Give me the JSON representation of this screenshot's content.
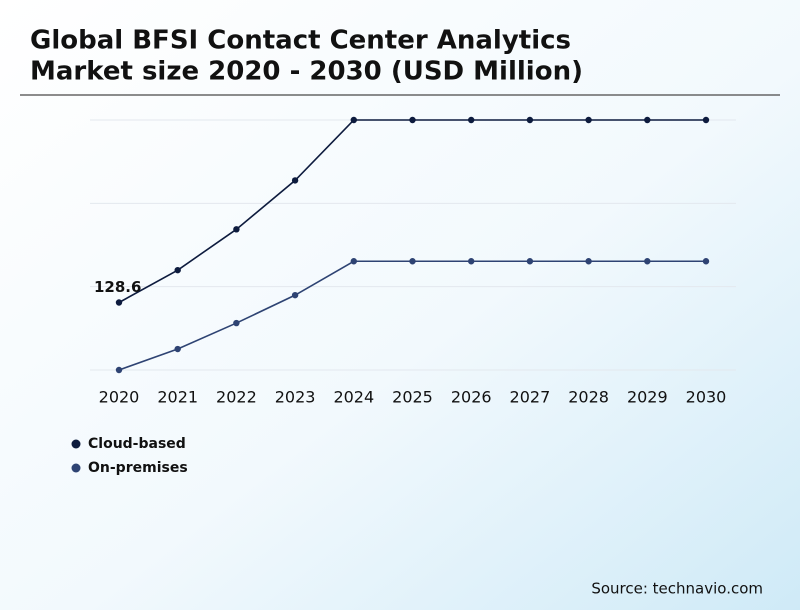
{
  "chart_data": {
    "type": "line",
    "title": [
      "Global BFSI Contact Center Analytics",
      "Market size 2020 - 2030 (USD Million)"
    ],
    "categories": [
      "2020",
      "2021",
      "2022",
      "2023",
      "2024",
      "2025",
      "2026",
      "2027",
      "2028",
      "2029",
      "2030"
    ],
    "series": [
      {
        "name": "Cloud-based",
        "color": "#0d1b3e",
        "values": [
          128.6,
          151.9,
          181.3,
          216.5,
          260,
          260,
          260,
          260,
          260,
          260,
          260
        ]
      },
      {
        "name": "On-premises",
        "color": "#2e4373",
        "values": [
          80,
          95.1,
          113.8,
          133.9,
          158.3,
          158.3,
          158.3,
          158.3,
          158.3,
          158.3,
          158.3
        ]
      }
    ],
    "ylim": [
      80,
      260
    ],
    "yticks": [
      80,
      140,
      200,
      260
    ],
    "grid": true,
    "source": "Source: technavio.com"
  }
}
